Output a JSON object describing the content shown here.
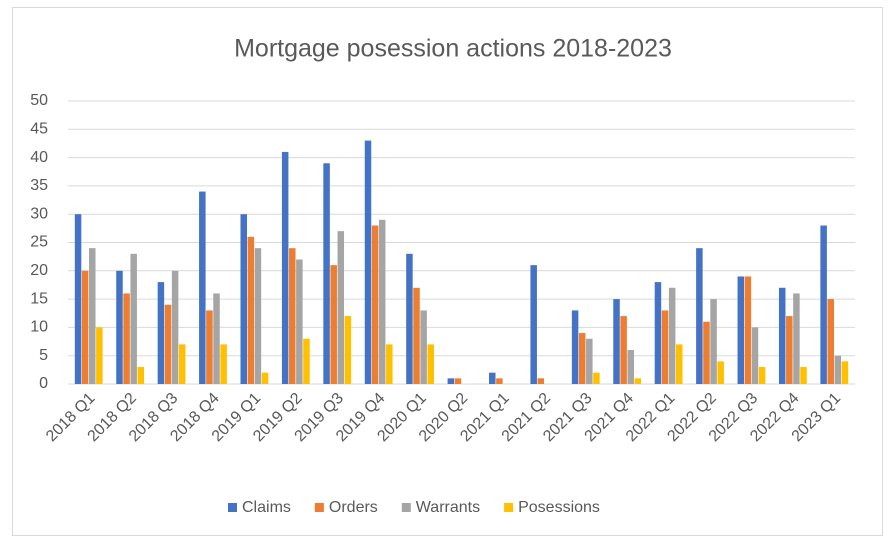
{
  "chart_data": {
    "type": "bar",
    "title": "Mortgage posession actions 2018-2023",
    "categories": [
      "2018 Q1",
      "2018 Q2",
      "2018 Q3",
      "2018 Q4",
      "2019 Q1",
      "2019 Q2",
      "2019 Q3",
      "2019 Q4",
      "2020 Q1",
      "2020 Q2",
      "2021 Q1",
      "2021 Q2",
      "2021 Q3",
      "2021 Q4",
      "2022 Q1",
      "2022 Q2",
      "2022 Q3",
      "2022 Q4",
      "2023 Q1"
    ],
    "series": [
      {
        "name": "Claims",
        "color": "#4472c4",
        "values": [
          30,
          20,
          18,
          34,
          30,
          41,
          39,
          43,
          23,
          1,
          2,
          21,
          13,
          15,
          18,
          24,
          19,
          17,
          28
        ]
      },
      {
        "name": "Orders",
        "color": "#ed7d31",
        "values": [
          20,
          16,
          14,
          13,
          26,
          24,
          21,
          28,
          17,
          1,
          1,
          1,
          9,
          12,
          13,
          11,
          19,
          12,
          15
        ]
      },
      {
        "name": "Warrants",
        "color": "#a5a5a5",
        "values": [
          24,
          23,
          20,
          16,
          24,
          22,
          27,
          29,
          13,
          0,
          0,
          0,
          8,
          6,
          17,
          15,
          10,
          16,
          5
        ]
      },
      {
        "name": "Posessions",
        "color": "#ffc000",
        "values": [
          10,
          3,
          7,
          7,
          2,
          8,
          12,
          7,
          7,
          0,
          0,
          0,
          2,
          1,
          7,
          4,
          3,
          3,
          4
        ]
      }
    ],
    "ylim": [
      0,
      50
    ],
    "yticks": [
      0,
      5,
      10,
      15,
      20,
      25,
      30,
      35,
      40,
      45,
      50
    ],
    "grid": true,
    "legend": "bottom"
  }
}
